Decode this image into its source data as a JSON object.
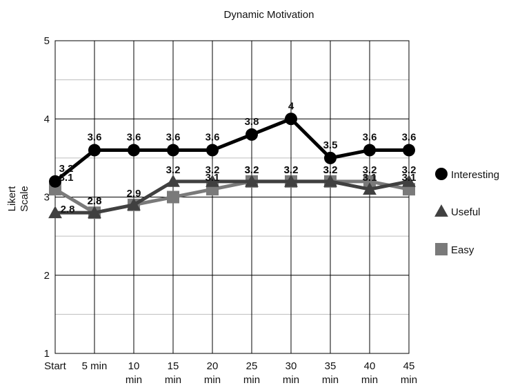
{
  "chart_data": {
    "type": "line",
    "title": "Dynamic Motivation",
    "ylabel_lines": [
      "Likert",
      "Scale"
    ],
    "categories": [
      [
        "Start"
      ],
      [
        "5 min"
      ],
      [
        "10",
        "min"
      ],
      [
        "15",
        "min"
      ],
      [
        "20",
        "min"
      ],
      [
        "25",
        "min"
      ],
      [
        "30",
        "min"
      ],
      [
        "35",
        "min"
      ],
      [
        "40",
        "min"
      ],
      [
        "45",
        "min"
      ]
    ],
    "ylim": [
      1,
      5
    ],
    "yticks": [
      1,
      2,
      3,
      4,
      5
    ],
    "grid": true,
    "legend_position": "right",
    "series": [
      {
        "name": "Interesting",
        "values": [
          3.2,
          3.6,
          3.6,
          3.6,
          3.6,
          3.8,
          4.0,
          3.5,
          3.6,
          3.6
        ],
        "labels": [
          "3.2",
          "3.6",
          "3.6",
          "3.6",
          "3.6",
          "3.8",
          "4",
          "3.5",
          "3.6",
          "3.6"
        ],
        "marker": "circle",
        "color": "#000000"
      },
      {
        "name": "Useful",
        "values": [
          2.8,
          2.8,
          2.9,
          3.2,
          3.2,
          3.2,
          3.2,
          3.2,
          3.1,
          3.2
        ],
        "labels": [
          "2.8",
          "2.8",
          "2.9",
          "3.2",
          "3.2",
          "3.2",
          "3.2",
          "3.2",
          "3.1",
          "3.2"
        ],
        "marker": "triangle",
        "color": "#404040"
      },
      {
        "name": "Easy",
        "values": [
          3.1,
          2.8,
          2.9,
          3.0,
          3.1,
          3.2,
          3.2,
          3.2,
          3.2,
          3.1
        ],
        "labels": [
          "3.1",
          "2.8",
          "",
          "",
          "3.1",
          "3.2",
          "3.2",
          "3.2",
          "3.2",
          "3.1"
        ],
        "marker": "square",
        "color": "#7a7a7a"
      }
    ]
  }
}
